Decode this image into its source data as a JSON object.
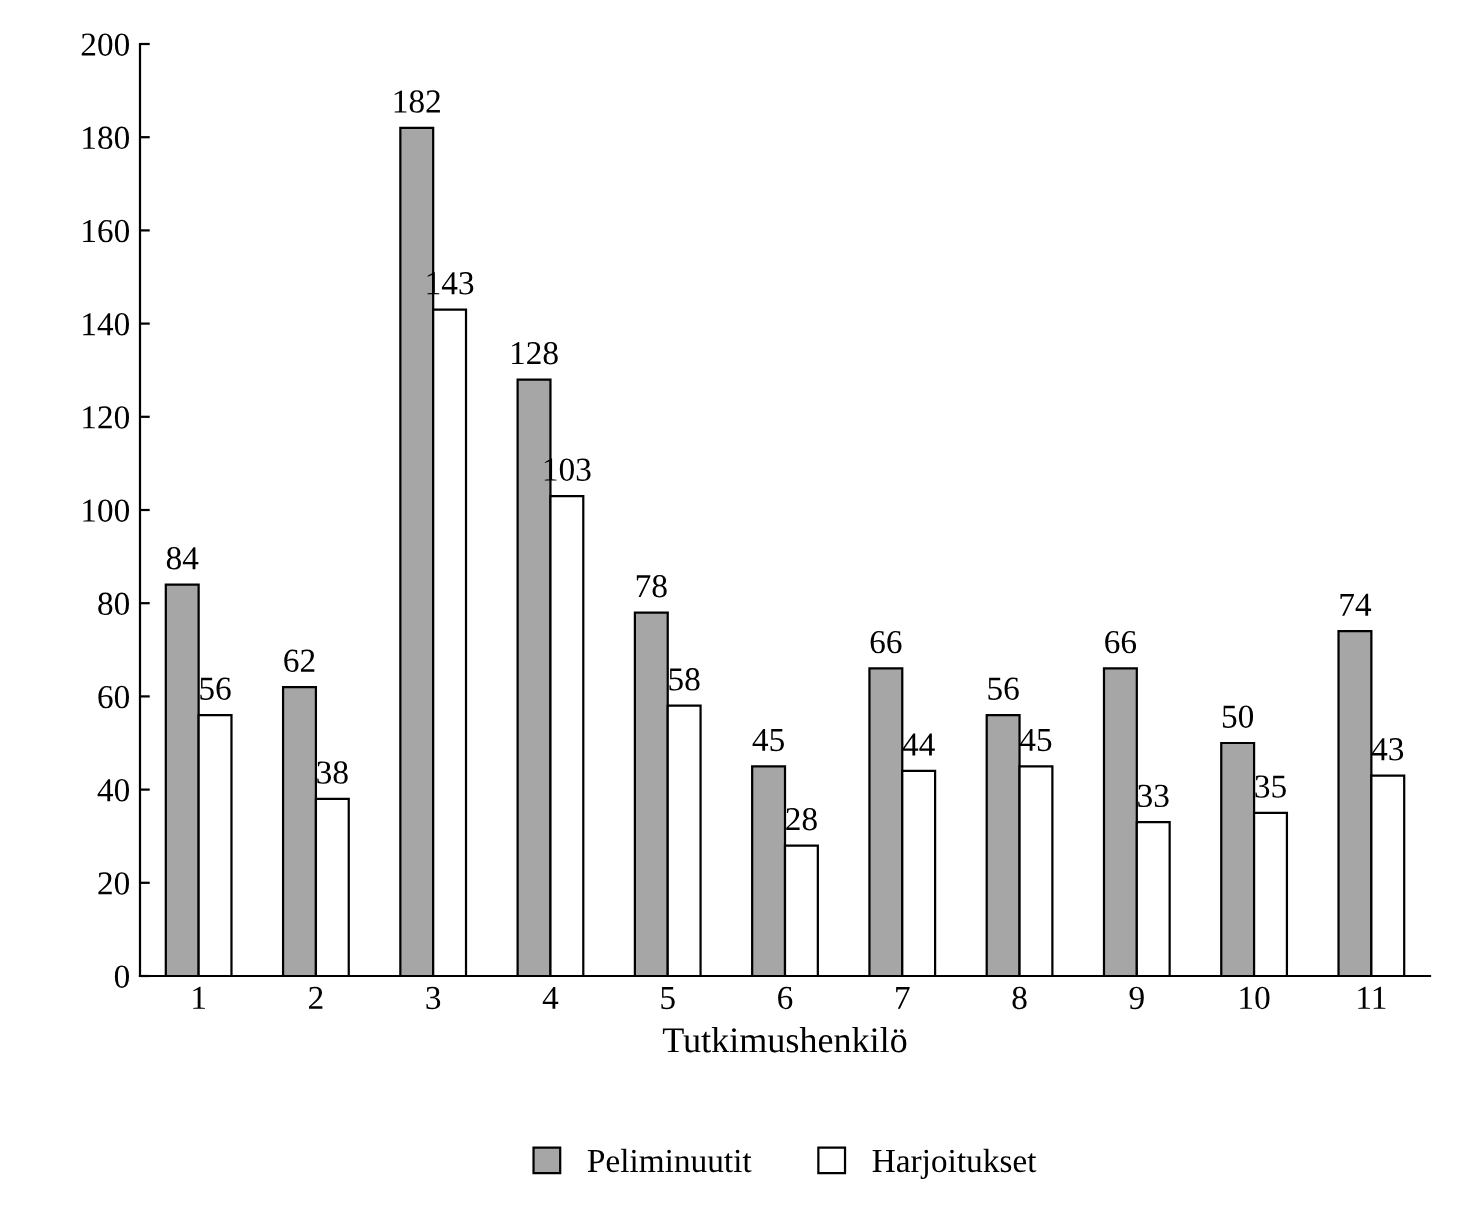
{
  "chart_data": {
    "type": "bar",
    "xlabel": "Tutkimushenkilö",
    "categories": [
      "1",
      "2",
      "3",
      "4",
      "5",
      "6",
      "7",
      "8",
      "9",
      "10",
      "11"
    ],
    "series": [
      {
        "name": "Peliminuutit",
        "color": "#a6a6a6",
        "values": [
          84,
          62,
          182,
          128,
          78,
          45,
          66,
          56,
          66,
          50,
          74
        ]
      },
      {
        "name": "Harjoitukset",
        "color": "#ffffff",
        "values": [
          56,
          38,
          143,
          103,
          58,
          28,
          44,
          45,
          33,
          35,
          43
        ]
      }
    ],
    "ylim": [
      0,
      200
    ],
    "yticks": [
      0,
      20,
      40,
      60,
      80,
      100,
      120,
      140,
      160,
      180,
      200
    ],
    "grid": false,
    "legend": "bottom",
    "data_labels": true
  }
}
